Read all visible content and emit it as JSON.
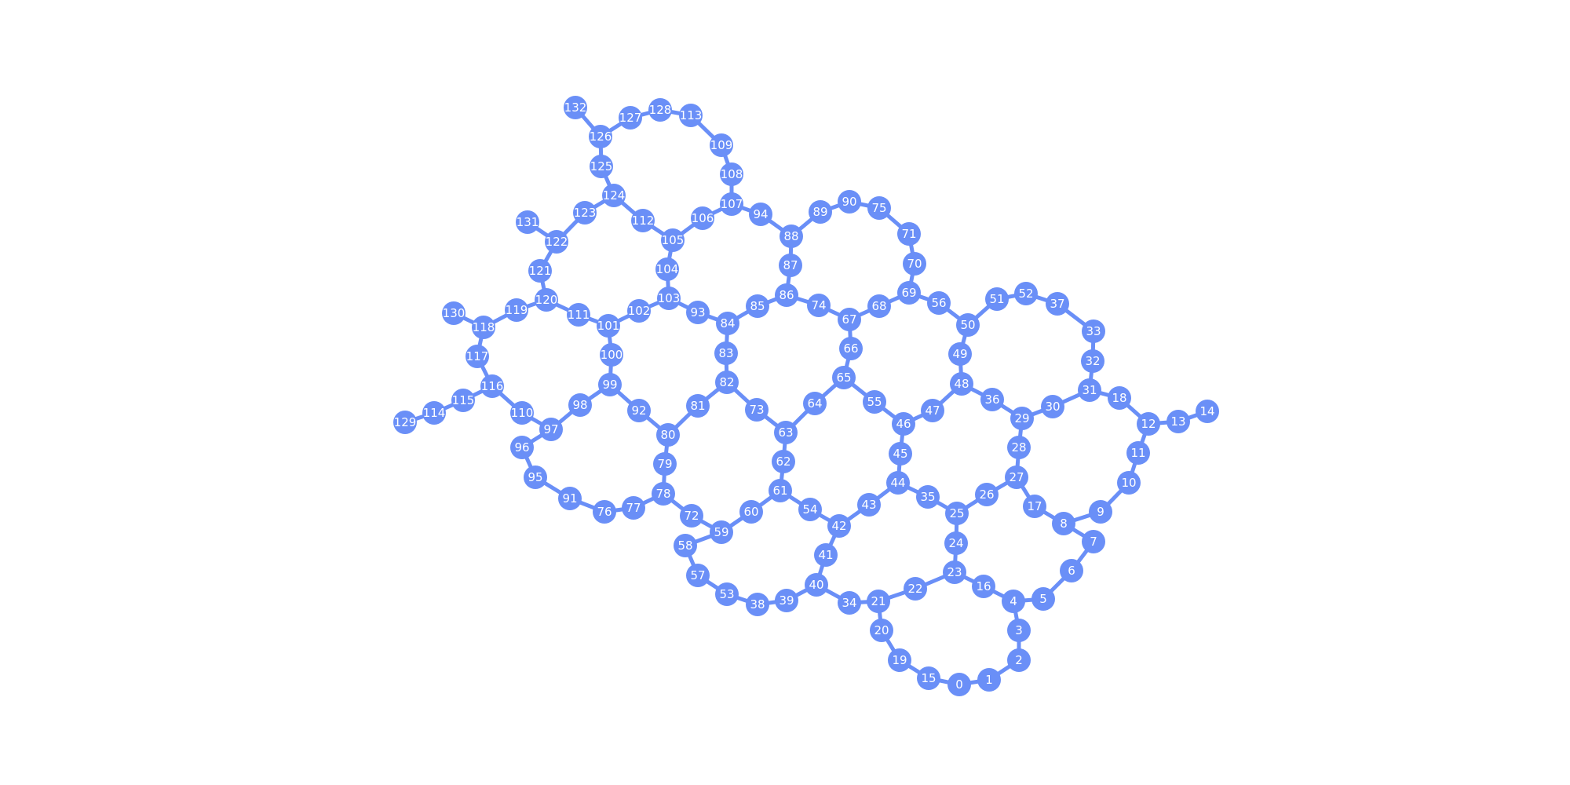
{
  "graph": {
    "node_color": "#6a8ff7",
    "edge_color": "#6a8ff7",
    "label_color": "#ffffff",
    "nodes": [
      "0",
      "1",
      "2",
      "3",
      "4",
      "5",
      "6",
      "7",
      "8",
      "9",
      "10",
      "11",
      "12",
      "13",
      "14",
      "15",
      "16",
      "17",
      "18",
      "19",
      "20",
      "21",
      "22",
      "23",
      "24",
      "25",
      "26",
      "27",
      "28",
      "29",
      "30",
      "31",
      "32",
      "33",
      "34",
      "35",
      "36",
      "37",
      "38",
      "39",
      "40",
      "41",
      "42",
      "43",
      "44",
      "45",
      "46",
      "47",
      "48",
      "49",
      "50",
      "51",
      "52",
      "53",
      "54",
      "55",
      "56",
      "57",
      "58",
      "59",
      "60",
      "61",
      "62",
      "63",
      "64",
      "65",
      "66",
      "67",
      "68",
      "69",
      "70",
      "71",
      "72",
      "73",
      "74",
      "75",
      "76",
      "77",
      "78",
      "79",
      "80",
      "81",
      "82",
      "83",
      "84",
      "85",
      "86",
      "87",
      "88",
      "89",
      "90",
      "91",
      "92",
      "93",
      "94",
      "95",
      "96",
      "97",
      "98",
      "99",
      "100",
      "101",
      "102",
      "103",
      "104",
      "105",
      "106",
      "107",
      "108",
      "109",
      "110",
      "111",
      "112",
      "113",
      "114",
      "115",
      "116",
      "117",
      "118",
      "119",
      "120",
      "121",
      "122",
      "123",
      "124",
      "125",
      "126",
      "127",
      "128",
      "129",
      "130",
      "131",
      "132"
    ],
    "edges": [
      [
        "0",
        "1"
      ],
      [
        "0",
        "15"
      ],
      [
        "15",
        "19"
      ],
      [
        "19",
        "20"
      ],
      [
        "20",
        "21"
      ],
      [
        "1",
        "2"
      ],
      [
        "2",
        "3"
      ],
      [
        "3",
        "4"
      ],
      [
        "4",
        "5"
      ],
      [
        "5",
        "6"
      ],
      [
        "6",
        "7"
      ],
      [
        "7",
        "8"
      ],
      [
        "8",
        "9"
      ],
      [
        "9",
        "10"
      ],
      [
        "10",
        "11"
      ],
      [
        "11",
        "12"
      ],
      [
        "12",
        "13"
      ],
      [
        "13",
        "14"
      ],
      [
        "12",
        "18"
      ],
      [
        "18",
        "31"
      ],
      [
        "4",
        "16"
      ],
      [
        "16",
        "23"
      ],
      [
        "23",
        "22"
      ],
      [
        "22",
        "21"
      ],
      [
        "21",
        "34"
      ],
      [
        "34",
        "40"
      ],
      [
        "23",
        "24"
      ],
      [
        "24",
        "25"
      ],
      [
        "25",
        "26"
      ],
      [
        "26",
        "27"
      ],
      [
        "27",
        "17"
      ],
      [
        "17",
        "8"
      ],
      [
        "27",
        "28"
      ],
      [
        "28",
        "29"
      ],
      [
        "29",
        "30"
      ],
      [
        "30",
        "31"
      ],
      [
        "31",
        "32"
      ],
      [
        "32",
        "33"
      ],
      [
        "33",
        "37"
      ],
      [
        "37",
        "52"
      ],
      [
        "52",
        "51"
      ],
      [
        "51",
        "50"
      ],
      [
        "50",
        "56"
      ],
      [
        "56",
        "69"
      ],
      [
        "50",
        "49"
      ],
      [
        "49",
        "48"
      ],
      [
        "48",
        "36"
      ],
      [
        "36",
        "29"
      ],
      [
        "48",
        "47"
      ],
      [
        "47",
        "46"
      ],
      [
        "46",
        "45"
      ],
      [
        "45",
        "44"
      ],
      [
        "44",
        "35"
      ],
      [
        "35",
        "25"
      ],
      [
        "44",
        "43"
      ],
      [
        "43",
        "42"
      ],
      [
        "42",
        "41"
      ],
      [
        "41",
        "40"
      ],
      [
        "40",
        "39"
      ],
      [
        "39",
        "38"
      ],
      [
        "38",
        "53"
      ],
      [
        "53",
        "57"
      ],
      [
        "57",
        "58"
      ],
      [
        "58",
        "59"
      ],
      [
        "42",
        "54"
      ],
      [
        "54",
        "61"
      ],
      [
        "61",
        "60"
      ],
      [
        "60",
        "59"
      ],
      [
        "59",
        "72"
      ],
      [
        "72",
        "78"
      ],
      [
        "61",
        "62"
      ],
      [
        "62",
        "63"
      ],
      [
        "63",
        "64"
      ],
      [
        "64",
        "65"
      ],
      [
        "65",
        "55"
      ],
      [
        "55",
        "46"
      ],
      [
        "65",
        "66"
      ],
      [
        "66",
        "67"
      ],
      [
        "67",
        "68"
      ],
      [
        "68",
        "69"
      ],
      [
        "69",
        "70"
      ],
      [
        "70",
        "71"
      ],
      [
        "71",
        "75"
      ],
      [
        "75",
        "90"
      ],
      [
        "90",
        "89"
      ],
      [
        "89",
        "88"
      ],
      [
        "67",
        "74"
      ],
      [
        "74",
        "86"
      ],
      [
        "86",
        "87"
      ],
      [
        "87",
        "88"
      ],
      [
        "88",
        "94"
      ],
      [
        "94",
        "107"
      ],
      [
        "86",
        "85"
      ],
      [
        "85",
        "84"
      ],
      [
        "84",
        "83"
      ],
      [
        "83",
        "82"
      ],
      [
        "82",
        "73"
      ],
      [
        "73",
        "63"
      ],
      [
        "82",
        "81"
      ],
      [
        "81",
        "80"
      ],
      [
        "80",
        "79"
      ],
      [
        "79",
        "78"
      ],
      [
        "78",
        "77"
      ],
      [
        "77",
        "76"
      ],
      [
        "76",
        "91"
      ],
      [
        "91",
        "95"
      ],
      [
        "95",
        "96"
      ],
      [
        "96",
        "97"
      ],
      [
        "80",
        "92"
      ],
      [
        "92",
        "99"
      ],
      [
        "99",
        "98"
      ],
      [
        "98",
        "97"
      ],
      [
        "97",
        "110"
      ],
      [
        "110",
        "116"
      ],
      [
        "116",
        "115"
      ],
      [
        "115",
        "114"
      ],
      [
        "114",
        "129"
      ],
      [
        "116",
        "117"
      ],
      [
        "117",
        "118"
      ],
      [
        "118",
        "130"
      ],
      [
        "118",
        "119"
      ],
      [
        "119",
        "120"
      ],
      [
        "120",
        "111"
      ],
      [
        "111",
        "101"
      ],
      [
        "101",
        "100"
      ],
      [
        "100",
        "99"
      ],
      [
        "101",
        "102"
      ],
      [
        "102",
        "103"
      ],
      [
        "103",
        "93"
      ],
      [
        "93",
        "84"
      ],
      [
        "103",
        "104"
      ],
      [
        "104",
        "105"
      ],
      [
        "105",
        "106"
      ],
      [
        "106",
        "107"
      ],
      [
        "107",
        "108"
      ],
      [
        "108",
        "109"
      ],
      [
        "109",
        "113"
      ],
      [
        "113",
        "128"
      ],
      [
        "128",
        "127"
      ],
      [
        "127",
        "126"
      ],
      [
        "126",
        "132"
      ],
      [
        "126",
        "125"
      ],
      [
        "125",
        "124"
      ],
      [
        "124",
        "112"
      ],
      [
        "112",
        "105"
      ],
      [
        "124",
        "123"
      ],
      [
        "123",
        "122"
      ],
      [
        "122",
        "131"
      ],
      [
        "122",
        "121"
      ],
      [
        "121",
        "120"
      ]
    ]
  }
}
